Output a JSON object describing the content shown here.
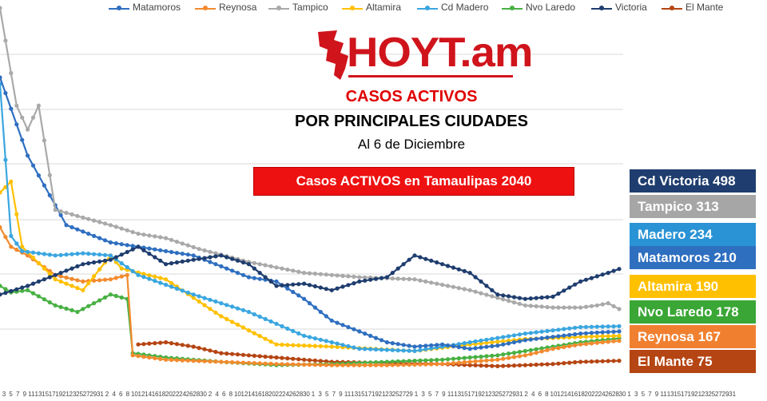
{
  "colors": {
    "Matamoros": "#2f6fc0",
    "Reynosa": "#f28a2e",
    "Tampico": "#a9a9a9",
    "Altamira": "#ffc000",
    "Cd Madero": "#3aa6e0",
    "Nvo Laredo": "#48b043",
    "Victoria": "#1f3d6e",
    "El Mante": "#b54512"
  },
  "logo": {
    "text": "HOYT.am"
  },
  "titles": {
    "line1": "CASOS ACTIVOS",
    "line2": "POR PRINCIPALES CIUDADES",
    "line3": "Al 6 de Diciembre"
  },
  "total_box": "Casos ACTIVOS en Tamaulipas  2040",
  "badges": [
    {
      "label": "Cd Victoria 498",
      "bg": "#1f3d6e"
    },
    {
      "label": "Tampico 313",
      "bg": "#a6a6a6"
    },
    {
      "label": "Madero 234",
      "bg": "#2a93d5"
    },
    {
      "label": "Matamoros 210",
      "bg": "#2f6fc0"
    },
    {
      "label": "Altamira 190",
      "bg": "#ffc000"
    },
    {
      "label": "Nvo Laredo 178",
      "bg": "#3aa635"
    },
    {
      "label": "Reynosa 167",
      "bg": "#f08030"
    },
    {
      "label": "El Mante 75",
      "bg": "#b54512"
    }
  ],
  "chart_data": {
    "type": "line",
    "title": "CASOS ACTIVOS POR PRINCIPALES CIUDADES",
    "subtitle": "Al 6 de Diciembre",
    "xlabel": "",
    "ylabel": "",
    "legend_position": "top",
    "grid": true,
    "ylim": [
      0,
      1700
    ],
    "x": [
      "3",
      "5",
      "7",
      "9",
      "11",
      "13",
      "15",
      "17",
      "19",
      "21",
      "23",
      "25",
      "27",
      "29",
      "31",
      "2",
      "4",
      "6",
      "8",
      "10",
      "12",
      "14",
      "16",
      "18",
      "20",
      "22",
      "24",
      "26",
      "28",
      "30",
      "2",
      "4",
      "6",
      "8",
      "10",
      "12",
      "14",
      "16",
      "18",
      "20",
      "22",
      "24",
      "26",
      "28",
      "30",
      "1",
      "3",
      "5",
      "7",
      "9",
      "11",
      "13",
      "15",
      "17",
      "19",
      "21",
      "23",
      "25",
      "27",
      "29",
      "1",
      "3",
      "5",
      "7",
      "9",
      "11",
      "13",
      "15",
      "17",
      "19",
      "21",
      "23",
      "25",
      "27",
      "29",
      "31",
      "2",
      "4",
      "6",
      "8",
      "10",
      "12",
      "14",
      "16",
      "18",
      "20",
      "22",
      "24",
      "26",
      "28",
      "30",
      "1",
      "3",
      "5",
      "7",
      "9",
      "11",
      "13",
      "15",
      "17",
      "19",
      "21",
      "23",
      "25",
      "27",
      "29",
      "31"
    ],
    "series": [
      {
        "name": "Matamoros",
        "values": [
          [
            0,
            1380
          ],
          [
            10,
            1020
          ],
          [
            24,
            700
          ],
          [
            40,
            620
          ],
          [
            70,
            560
          ],
          [
            90,
            460
          ],
          [
            100,
            440
          ],
          [
            110,
            360
          ],
          [
            120,
            260
          ],
          [
            130,
            210
          ],
          [
            140,
            160
          ],
          [
            150,
            140
          ],
          [
            160,
            150
          ],
          [
            170,
            130
          ],
          [
            180,
            145
          ],
          [
            190,
            170
          ],
          [
            200,
            185
          ],
          [
            210,
            200
          ],
          [
            216,
            205
          ],
          [
            224,
            210
          ]
        ]
      },
      {
        "name": "Reynosa",
        "values": [
          [
            0,
            690
          ],
          [
            4,
            600
          ],
          [
            10,
            560
          ],
          [
            20,
            470
          ],
          [
            30,
            440
          ],
          [
            40,
            450
          ],
          [
            46,
            470
          ],
          [
            48,
            100
          ],
          [
            60,
            80
          ],
          [
            80,
            70
          ],
          [
            100,
            60
          ],
          [
            120,
            55
          ],
          [
            140,
            55
          ],
          [
            160,
            60
          ],
          [
            180,
            80
          ],
          [
            190,
            100
          ],
          [
            200,
            130
          ],
          [
            210,
            150
          ],
          [
            218,
            160
          ],
          [
            224,
            167
          ]
        ]
      },
      {
        "name": "Tampico",
        "values": [
          [
            0,
            1700
          ],
          [
            6,
            1250
          ],
          [
            10,
            1140
          ],
          [
            14,
            1250
          ],
          [
            20,
            770
          ],
          [
            40,
            700
          ],
          [
            50,
            660
          ],
          [
            60,
            640
          ],
          [
            72,
            590
          ],
          [
            90,
            530
          ],
          [
            110,
            480
          ],
          [
            130,
            460
          ],
          [
            150,
            450
          ],
          [
            170,
            400
          ],
          [
            190,
            330
          ],
          [
            200,
            320
          ],
          [
            210,
            320
          ],
          [
            216,
            330
          ],
          [
            220,
            340
          ],
          [
            224,
            313
          ]
        ]
      },
      {
        "name": "Altamira",
        "values": [
          [
            0,
            850
          ],
          [
            4,
            900
          ],
          [
            8,
            600
          ],
          [
            20,
            450
          ],
          [
            30,
            400
          ],
          [
            40,
            560
          ],
          [
            44,
            500
          ],
          [
            60,
            450
          ],
          [
            80,
            280
          ],
          [
            100,
            150
          ],
          [
            120,
            140
          ],
          [
            150,
            120
          ],
          [
            170,
            150
          ],
          [
            190,
            175
          ],
          [
            210,
            185
          ],
          [
            224,
            190
          ]
        ]
      },
      {
        "name": "Cd Madero",
        "values": [
          [
            0,
            1350
          ],
          [
            4,
            650
          ],
          [
            8,
            580
          ],
          [
            20,
            560
          ],
          [
            30,
            570
          ],
          [
            40,
            560
          ],
          [
            50,
            470
          ],
          [
            70,
            380
          ],
          [
            90,
            300
          ],
          [
            110,
            190
          ],
          [
            130,
            130
          ],
          [
            150,
            120
          ],
          [
            170,
            160
          ],
          [
            190,
            200
          ],
          [
            210,
            230
          ],
          [
            224,
            234
          ]
        ]
      },
      {
        "name": "Nvo Laredo",
        "values": [
          [
            0,
            420
          ],
          [
            4,
            390
          ],
          [
            10,
            400
          ],
          [
            20,
            330
          ],
          [
            28,
            300
          ],
          [
            40,
            380
          ],
          [
            46,
            360
          ],
          [
            48,
            110
          ],
          [
            60,
            90
          ],
          [
            80,
            70
          ],
          [
            100,
            55
          ],
          [
            120,
            60
          ],
          [
            140,
            70
          ],
          [
            160,
            80
          ],
          [
            180,
            100
          ],
          [
            190,
            120
          ],
          [
            200,
            140
          ],
          [
            210,
            160
          ],
          [
            224,
            178
          ]
        ]
      },
      {
        "name": "Victoria",
        "values": [
          [
            0,
            380
          ],
          [
            10,
            420
          ],
          [
            20,
            470
          ],
          [
            30,
            520
          ],
          [
            40,
            540
          ],
          [
            50,
            600
          ],
          [
            60,
            520
          ],
          [
            70,
            540
          ],
          [
            80,
            560
          ],
          [
            90,
            520
          ],
          [
            100,
            420
          ],
          [
            110,
            430
          ],
          [
            120,
            400
          ],
          [
            130,
            440
          ],
          [
            140,
            460
          ],
          [
            150,
            560
          ],
          [
            160,
            520
          ],
          [
            170,
            480
          ],
          [
            180,
            380
          ],
          [
            190,
            360
          ],
          [
            200,
            370
          ],
          [
            210,
            440
          ],
          [
            220,
            480
          ],
          [
            224,
            498
          ]
        ]
      },
      {
        "name": "El Mante",
        "values": [
          [
            50,
            150
          ],
          [
            60,
            160
          ],
          [
            70,
            140
          ],
          [
            80,
            110
          ],
          [
            100,
            90
          ],
          [
            120,
            70
          ],
          [
            140,
            65
          ],
          [
            160,
            60
          ],
          [
            180,
            50
          ],
          [
            200,
            60
          ],
          [
            210,
            70
          ],
          [
            224,
            75
          ]
        ]
      }
    ]
  }
}
